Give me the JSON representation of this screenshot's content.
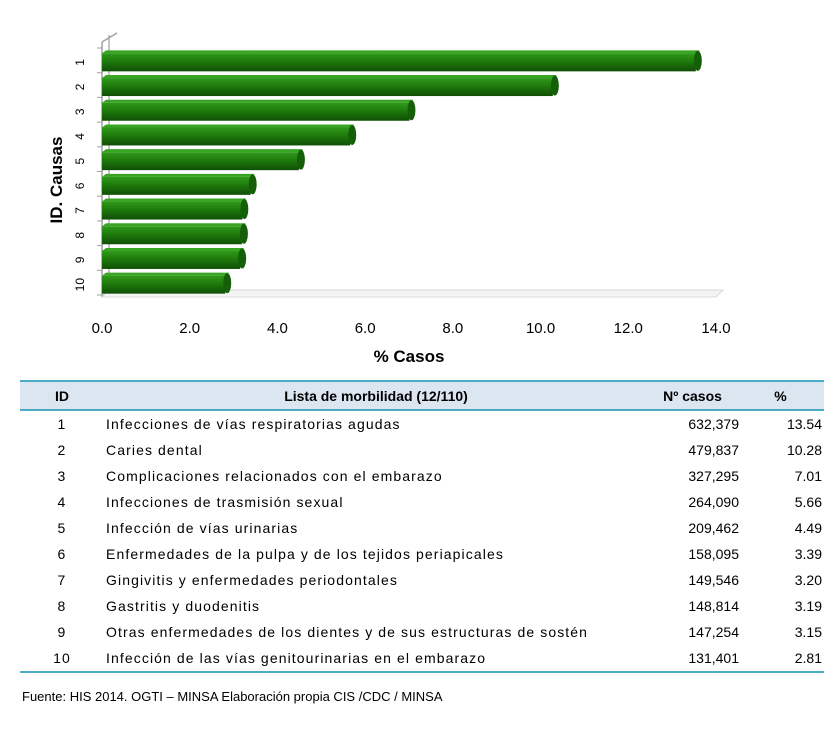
{
  "chart_data": {
    "type": "bar",
    "orientation": "horizontal",
    "categories": [
      "1",
      "2",
      "3",
      "4",
      "5",
      "6",
      "7",
      "8",
      "9",
      "10"
    ],
    "values": [
      13.54,
      10.28,
      7.01,
      5.66,
      4.49,
      3.39,
      3.2,
      3.19,
      3.15,
      2.81
    ],
    "xlabel": "% Casos",
    "ylabel": "ID. Causas",
    "xlim": [
      0,
      14
    ],
    "x_ticks": [
      "0.0",
      "2.0",
      "4.0",
      "6.0",
      "8.0",
      "10.0",
      "12.0",
      "14.0"
    ],
    "bar_color": "#1e7a0c",
    "grid": false
  },
  "table": {
    "headers": {
      "id": "ID",
      "name": "Lista de morbilidad (12/110)",
      "cases": "Nº casos",
      "pct": "%"
    },
    "rows": [
      {
        "id": "1",
        "name": "Infecciones de vías respiratorias agudas",
        "cases": "632,379",
        "pct": "13.54"
      },
      {
        "id": "2",
        "name": "Caries dental",
        "cases": "479,837",
        "pct": "10.28"
      },
      {
        "id": "3",
        "name": "Complicaciones relacionados con el embarazo",
        "cases": "327,295",
        "pct": "7.01"
      },
      {
        "id": "4",
        "name": "Infecciones de trasmisión sexual",
        "cases": "264,090",
        "pct": "5.66"
      },
      {
        "id": "5",
        "name": "Infección de vías urinarias",
        "cases": "209,462",
        "pct": "4.49"
      },
      {
        "id": "6",
        "name": "Enfermedades de la pulpa y de los tejidos periapicales",
        "cases": "158,095",
        "pct": "3.39"
      },
      {
        "id": "7",
        "name": "Gingivitis y enfermedades periodontales",
        "cases": "149,546",
        "pct": "3.20"
      },
      {
        "id": "8",
        "name": "Gastritis y duodenitis",
        "cases": "148,814",
        "pct": "3.19"
      },
      {
        "id": "9",
        "name": "Otras enfermedades de los dientes y de sus estructuras de sostén",
        "cases": "147,254",
        "pct": "3.15"
      },
      {
        "id": "10",
        "name": "Infección de las vías genitourinarias en el embarazo",
        "cases": "131,401",
        "pct": "2.81"
      }
    ]
  },
  "source_note": "Fuente:  HIS 2014.   OGTI  – MINSA  Elaboración  propia  CIS /CDC / MINSA"
}
